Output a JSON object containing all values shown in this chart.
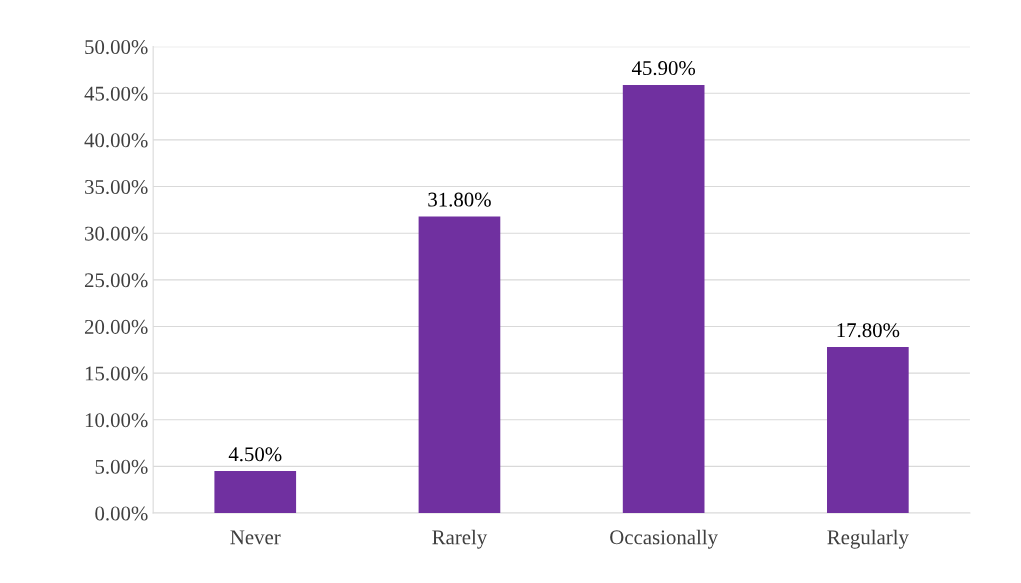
{
  "chart_data": {
    "type": "bar",
    "categories": [
      "Never",
      "Rarely",
      "Occasionally",
      "Regularly"
    ],
    "values": [
      4.5,
      31.8,
      45.9,
      17.8
    ],
    "color": "#7030a0",
    "value_labels": [
      "4.50%",
      "31.80%",
      "45.90%",
      "17.80%"
    ],
    "ylim": [
      0,
      50
    ],
    "yticks": [
      {
        "value": 0,
        "label": "0.00%"
      },
      {
        "value": 5,
        "label": "5.00%"
      },
      {
        "value": 10,
        "label": "10.00%"
      },
      {
        "value": 15,
        "label": "15.00%"
      },
      {
        "value": 20,
        "label": "20.00%"
      },
      {
        "value": 25,
        "label": "25.00%"
      },
      {
        "value": 30,
        "label": "30.00%"
      },
      {
        "value": 35,
        "label": "35.00%"
      },
      {
        "value": 40,
        "label": "40.00%"
      },
      {
        "value": 45,
        "label": "45.00%"
      },
      {
        "value": 50,
        "label": "50.00%"
      }
    ],
    "grid": "y"
  }
}
